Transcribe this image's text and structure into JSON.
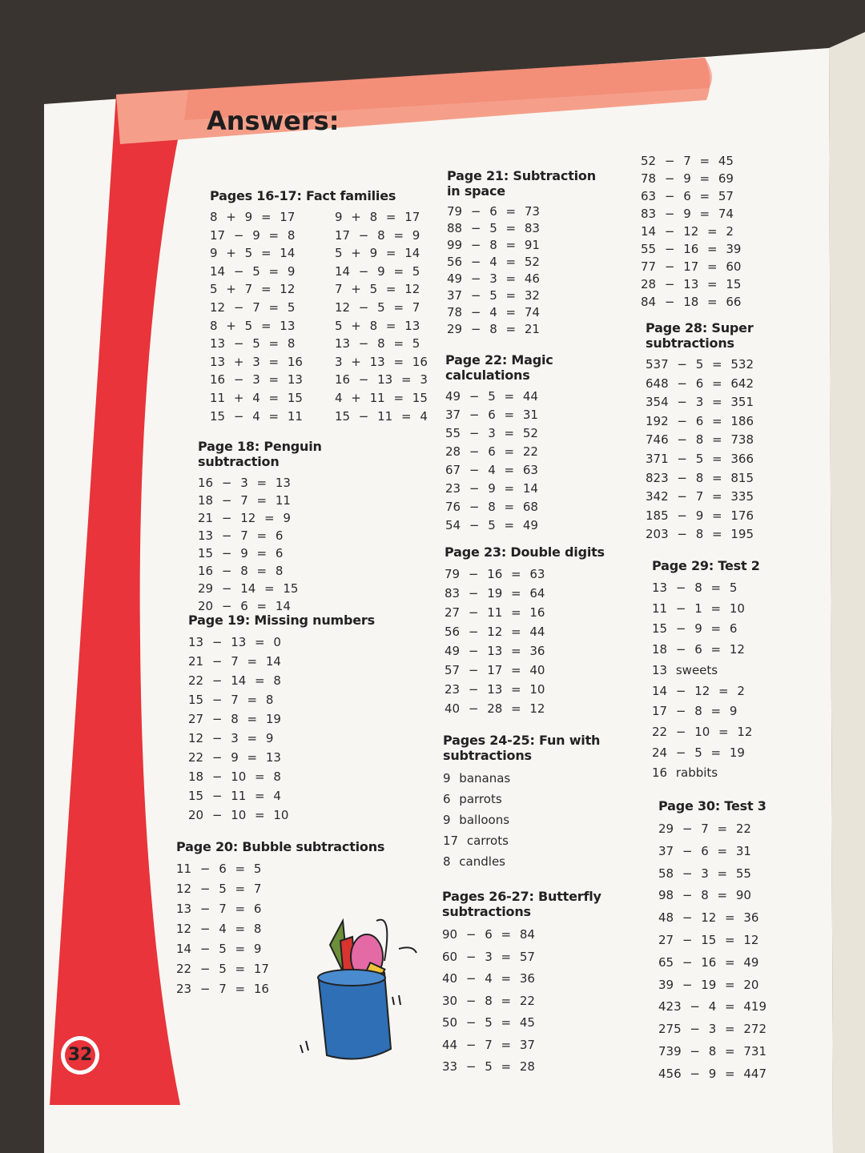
{
  "header": {
    "title": "Answers:"
  },
  "page_number": "32",
  "sections": [
    {
      "title": "Pages 16-17: Fact families",
      "columns": [
        [
          "8 + 9 = 17",
          "17 − 9 = 8",
          "9 + 5 = 14",
          "14 − 5 = 9",
          "5 + 7 = 12",
          "12 − 7 = 5",
          "8 + 5 = 13",
          "13 − 5 = 8",
          "13 + 3 = 16",
          "16 − 3 = 13",
          "11 + 4 = 15",
          "15 − 4 = 11"
        ],
        [
          "9 + 8 = 17",
          "17 − 8 = 9",
          "5 + 9 = 14",
          "14 − 9 = 5",
          "7 + 5 = 12",
          "12 − 5 = 7",
          "5 + 8 = 13",
          "13 − 8 = 5",
          "3 + 13 = 16",
          "16 − 13 = 3",
          "4 + 11 = 15",
          "15 − 11 = 4"
        ]
      ]
    },
    {
      "title": "Page 18: Penguin subtraction",
      "lines": [
        "16 − 3 = 13",
        "18 − 7 = 11",
        "21 − 12 = 9",
        "13 − 7 = 6",
        "15 − 9 = 6",
        "16 − 8 = 8",
        "29 − 14 = 15",
        "20 − 6 = 14"
      ]
    },
    {
      "title": "Page 19: Missing numbers",
      "lines": [
        "13 − 13 = 0",
        "21 − 7 = 14",
        "22 − 14 = 8",
        "15 − 7 = 8",
        "27 − 8 = 19",
        "12 − 3 = 9",
        "22 − 9 = 13",
        "18 − 10 = 8",
        "15 − 11 = 4",
        "20 − 10 = 10"
      ]
    },
    {
      "title": "Page 20: Bubble subtractions",
      "lines": [
        "11 − 6 = 5",
        "12 − 5 = 7",
        "13 − 7 = 6",
        "12 − 4 = 8",
        "14 − 5 = 9",
        "22 − 5 = 17",
        "23 − 7 = 16"
      ]
    },
    {
      "title": "Page 21: Subtraction in space",
      "lines": [
        "79 − 6 = 73",
        "88 − 5 = 83",
        "99 − 8 = 91",
        "56 − 4 = 52",
        "49 − 3 = 46",
        "37 − 5 = 32",
        "78 − 4 = 74",
        "29 − 8 = 21"
      ]
    },
    {
      "title": "Page 22: Magic calculations",
      "lines": [
        "49 − 5 = 44",
        "37 − 6 = 31",
        "55 − 3 = 52",
        "28 − 6 = 22",
        "67 − 4 = 63",
        "23 − 9 = 14",
        "76 − 8 = 68",
        "54 − 5 = 49"
      ]
    },
    {
      "title": "Page 23: Double digits",
      "lines": [
        "79 − 16 = 63",
        "83 − 19 = 64",
        "27 − 11 = 16",
        "56 − 12 = 44",
        "49 − 13 = 36",
        "57 − 17 = 40",
        "23 − 13 = 10",
        "40 − 28 = 12"
      ]
    },
    {
      "title": "Pages 24-25: Fun with subtractions",
      "lines": [
        "9 bananas",
        "6 parrots",
        "9 balloons",
        "17 carrots",
        "8 candles"
      ]
    },
    {
      "title": "Pages 26-27: Butterfly subtractions",
      "lines": [
        "90 − 6 = 84",
        "60 − 3 = 57",
        "40 − 4 = 36",
        "30 − 8 = 22",
        "50 − 5 = 45",
        "44 − 7 = 37",
        "33 − 5 = 28"
      ]
    },
    {
      "lines": [
        "52 − 7 = 45",
        "78 − 9 = 69",
        "63 − 6 = 57",
        "83 − 9 = 74",
        "14 − 12 = 2",
        "55 − 16 = 39",
        "77 − 17 = 60",
        "28 − 13 = 15",
        "84 − 18 = 66"
      ]
    },
    {
      "title": "Page 28: Super subtractions",
      "lines": [
        "537 − 5 = 532",
        "648 − 6 = 642",
        "354 − 3 = 351",
        "192 − 6 = 186",
        "746 − 8 = 738",
        "371 − 5 = 366",
        "823 − 8 = 815",
        "342 − 7 = 335",
        "185 − 9 = 176",
        "203 − 8 = 195"
      ]
    },
    {
      "title": "Page 29: Test 2",
      "lines": [
        "13 − 8 = 5",
        "11 − 1 = 10",
        "15 − 9 = 6",
        "18 − 6 = 12",
        "13 sweets",
        "14 − 12 = 2",
        "17 − 8 = 9",
        "22 − 10 = 12",
        "24 − 5 = 19",
        "16 rabbits"
      ]
    },
    {
      "title": "Page 30: Test 3",
      "lines": [
        "29 − 7 = 22",
        "37 − 6 = 31",
        "58 − 3 = 55",
        "98 − 8 = 90",
        "48 − 12 = 36",
        "27 − 15 = 12",
        "65 − 16 = 49",
        "39 − 19 = 20",
        "423 − 4 = 419",
        "275 − 3 = 272",
        "739 − 8 = 731",
        "456 − 9 = 447"
      ]
    }
  ]
}
